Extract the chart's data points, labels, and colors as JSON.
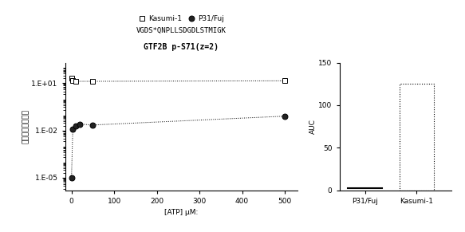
{
  "left_title1": "VGDS*QNPLLSDGDLSTMIGK",
  "left_title2": "GTF2B p-S71(z=2)",
  "xlabel": "[ATP] μM:",
  "ylabel": "標準化された活性",
  "kasumi1_x": [
    0,
    3,
    10,
    50,
    500
  ],
  "kasumi1_y": [
    20,
    15,
    13,
    13,
    14
  ],
  "p31_x": [
    0,
    3,
    10,
    20,
    50,
    500
  ],
  "p31_y": [
    1e-05,
    0.012,
    0.02,
    0.025,
    0.022,
    0.08
  ],
  "ytick_labels": [
    "1.E-05",
    "1.E-02",
    "1.E+01"
  ],
  "xlim": [
    -15,
    530
  ],
  "xticks": [
    0,
    100,
    200,
    300,
    400,
    500
  ],
  "bar_categories": [
    "P31/Fuj",
    "Kasumi-1"
  ],
  "bar_values": [
    0,
    125
  ],
  "auc_ylabel": "AUC",
  "auc_ylim": [
    0,
    150
  ],
  "auc_yticks": [
    0,
    50,
    100,
    150
  ],
  "legend_kasumi": "Kasumi-1",
  "legend_p31": "P31/Fuj",
  "font_size": 6.5,
  "title_font_size": 6.5
}
